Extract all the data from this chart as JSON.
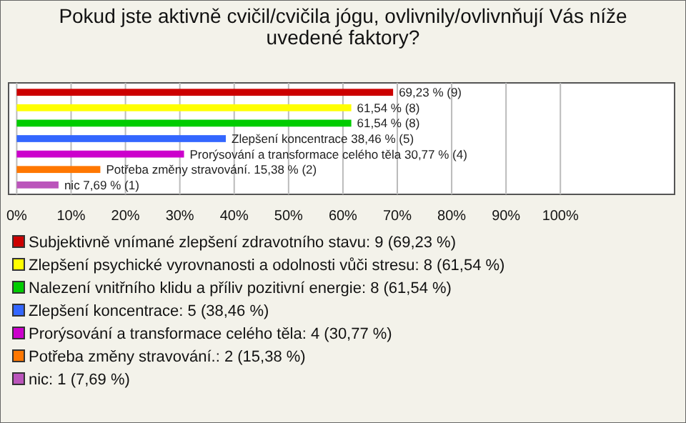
{
  "chart_data": {
    "type": "bar",
    "orientation": "horizontal",
    "title": "Pokud jste aktivně cvičil/cvičila jógu, ovlivnily/ovlivnňují Vás níže uvedené faktory?",
    "categories": [
      null,
      null,
      null,
      null,
      null,
      null,
      null
    ],
    "series": [
      {
        "name": "Subjektivně vnímané zlepšení zdravotního stavu: 9 (69,23 %)",
        "color": "#cc0000",
        "values": [
          69.23,
          null,
          null,
          null,
          null,
          null,
          null
        ],
        "value_labels": [
          "69,23 % (9)",
          null,
          null,
          null,
          null,
          null,
          null
        ]
      },
      {
        "name": "Zlepšení psychické vyrovnanosti a odolnosti vůči stresu: 8 (61,54 %)",
        "color": "#ffff00",
        "values": [
          null,
          61.54,
          null,
          null,
          null,
          null,
          null
        ],
        "value_labels": [
          null,
          "61,54 % (8)",
          null,
          null,
          null,
          null,
          null
        ]
      },
      {
        "name": "Nalezení vnitřního klidu a příliv pozitivní energie: 8 (61,54 %)",
        "color": "#00cc00",
        "values": [
          null,
          null,
          61.54,
          null,
          null,
          null,
          null
        ],
        "value_labels": [
          null,
          null,
          "61,54 % (8)",
          null,
          null,
          null,
          null
        ]
      },
      {
        "name": "Zlepšení koncentrace: 5 (38,46 %)",
        "color": "#3366ff",
        "values": [
          null,
          null,
          null,
          38.46,
          null,
          null,
          null
        ],
        "value_labels": [
          null,
          null,
          null,
          "Zlepšení koncentrace 38,46 % (5)",
          null,
          null,
          null
        ]
      },
      {
        "name": "Prorýsování a transformace celého těla: 4 (30,77 %)",
        "color": "#cc00cc",
        "values": [
          null,
          null,
          null,
          null,
          30.77,
          null,
          null
        ],
        "value_labels": [
          null,
          null,
          null,
          null,
          "Prorýsování a transformace celého těla 30,77 % (4)",
          null,
          null
        ]
      },
      {
        "name": "Potřeba změny stravování.: 2 (15,38 %)",
        "color": "#ff7700",
        "values": [
          null,
          null,
          null,
          null,
          null,
          15.38,
          null
        ],
        "value_labels": [
          null,
          null,
          null,
          null,
          null,
          "Potřeba změny stravování. 15,38 % (2)",
          null
        ]
      },
      {
        "name": "nic: 1 (7,69 %)",
        "color": "#bb55bb",
        "values": [
          null,
          null,
          null,
          null,
          null,
          null,
          7.69
        ],
        "value_labels": [
          null,
          null,
          null,
          null,
          null,
          null,
          "nic 7,69 % (1)"
        ]
      }
    ],
    "xlim": [
      -1.5,
      121
    ],
    "xticks": [
      {
        "value": 0,
        "label": "0%"
      },
      {
        "value": 10,
        "label": "10%"
      },
      {
        "value": 20,
        "label": "20%"
      },
      {
        "value": 30,
        "label": "30%"
      },
      {
        "value": 40,
        "label": "40%"
      },
      {
        "value": 50,
        "label": "50%"
      },
      {
        "value": 60,
        "label": "60%"
      },
      {
        "value": 70,
        "label": "70%"
      },
      {
        "value": 80,
        "label": "80%"
      },
      {
        "value": 90,
        "label": "90%"
      },
      {
        "value": 100,
        "label": "100%"
      }
    ],
    "grid": "x",
    "legend": "bottom"
  }
}
